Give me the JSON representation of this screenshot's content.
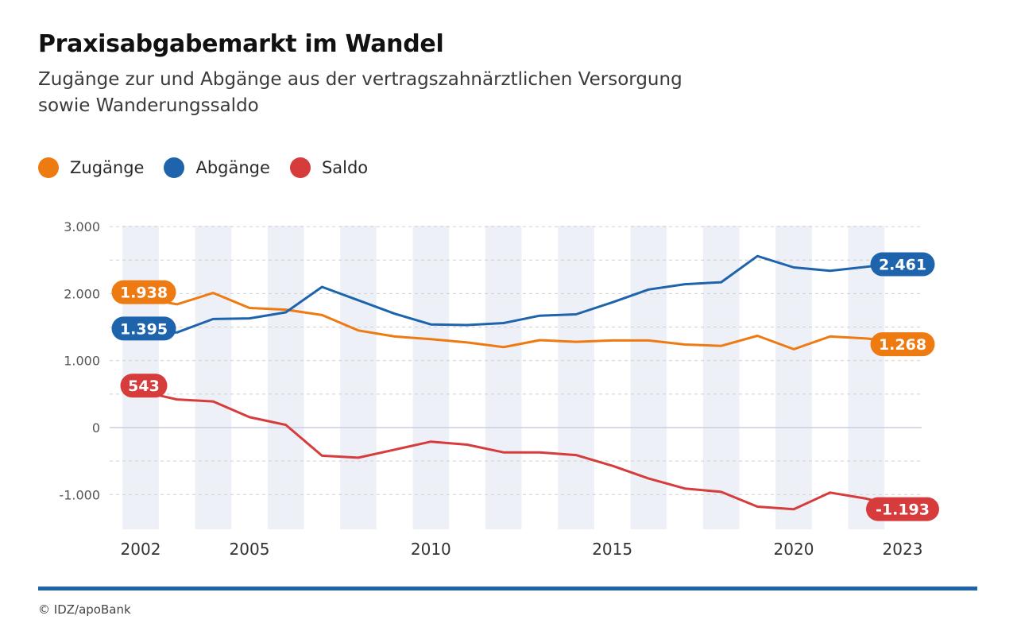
{
  "chart_data": {
    "type": "line",
    "title": "Praxisabgabemarkt im Wandel",
    "subtitle": "Zugänge zur und Abgänge aus der vertragszahnärztlichen Versorgung sowie Wanderungssaldo",
    "x": [
      2002,
      2003,
      2004,
      2005,
      2006,
      2007,
      2008,
      2009,
      2010,
      2011,
      2012,
      2013,
      2014,
      2015,
      2016,
      2017,
      2018,
      2019,
      2020,
      2021,
      2022,
      2023
    ],
    "x_tick_labels": [
      "2002",
      "2005",
      "2010",
      "2015",
      "2020",
      "2023"
    ],
    "y_tick_labels": [
      "3.000",
      "2.000",
      "1.000",
      "0",
      "-1.000"
    ],
    "ylim": [
      -1500,
      3000
    ],
    "series": [
      {
        "name": "Zugänge",
        "color": "#ee7a12",
        "values": [
          1938,
          1840,
          2010,
          1785,
          1760,
          1680,
          1450,
          1360,
          1320,
          1270,
          1200,
          1305,
          1280,
          1300,
          1300,
          1240,
          1220,
          1370,
          1170,
          1360,
          1330,
          1268
        ],
        "start_label": "1.938",
        "end_label": "1.268"
      },
      {
        "name": "Abgänge",
        "color": "#1d64ad",
        "values": [
          1395,
          1420,
          1620,
          1630,
          1720,
          2100,
          1900,
          1700,
          1540,
          1530,
          1560,
          1670,
          1690,
          1870,
          2060,
          2140,
          2170,
          2560,
          2390,
          2340,
          2400,
          2461
        ],
        "start_label": "1.395",
        "end_label": "2.461"
      },
      {
        "name": "Saldo",
        "color": "#d63c3c",
        "values": [
          543,
          420,
          390,
          155,
          40,
          -420,
          -450,
          -330,
          -210,
          -255,
          -370,
          -370,
          -410,
          -570,
          -760,
          -910,
          -960,
          -1180,
          -1220,
          -970,
          -1060,
          -1193
        ],
        "start_label": "543",
        "end_label": "-1.193"
      }
    ],
    "grid": true,
    "legend": "top-left"
  },
  "source": "© IDZ/apoBank"
}
